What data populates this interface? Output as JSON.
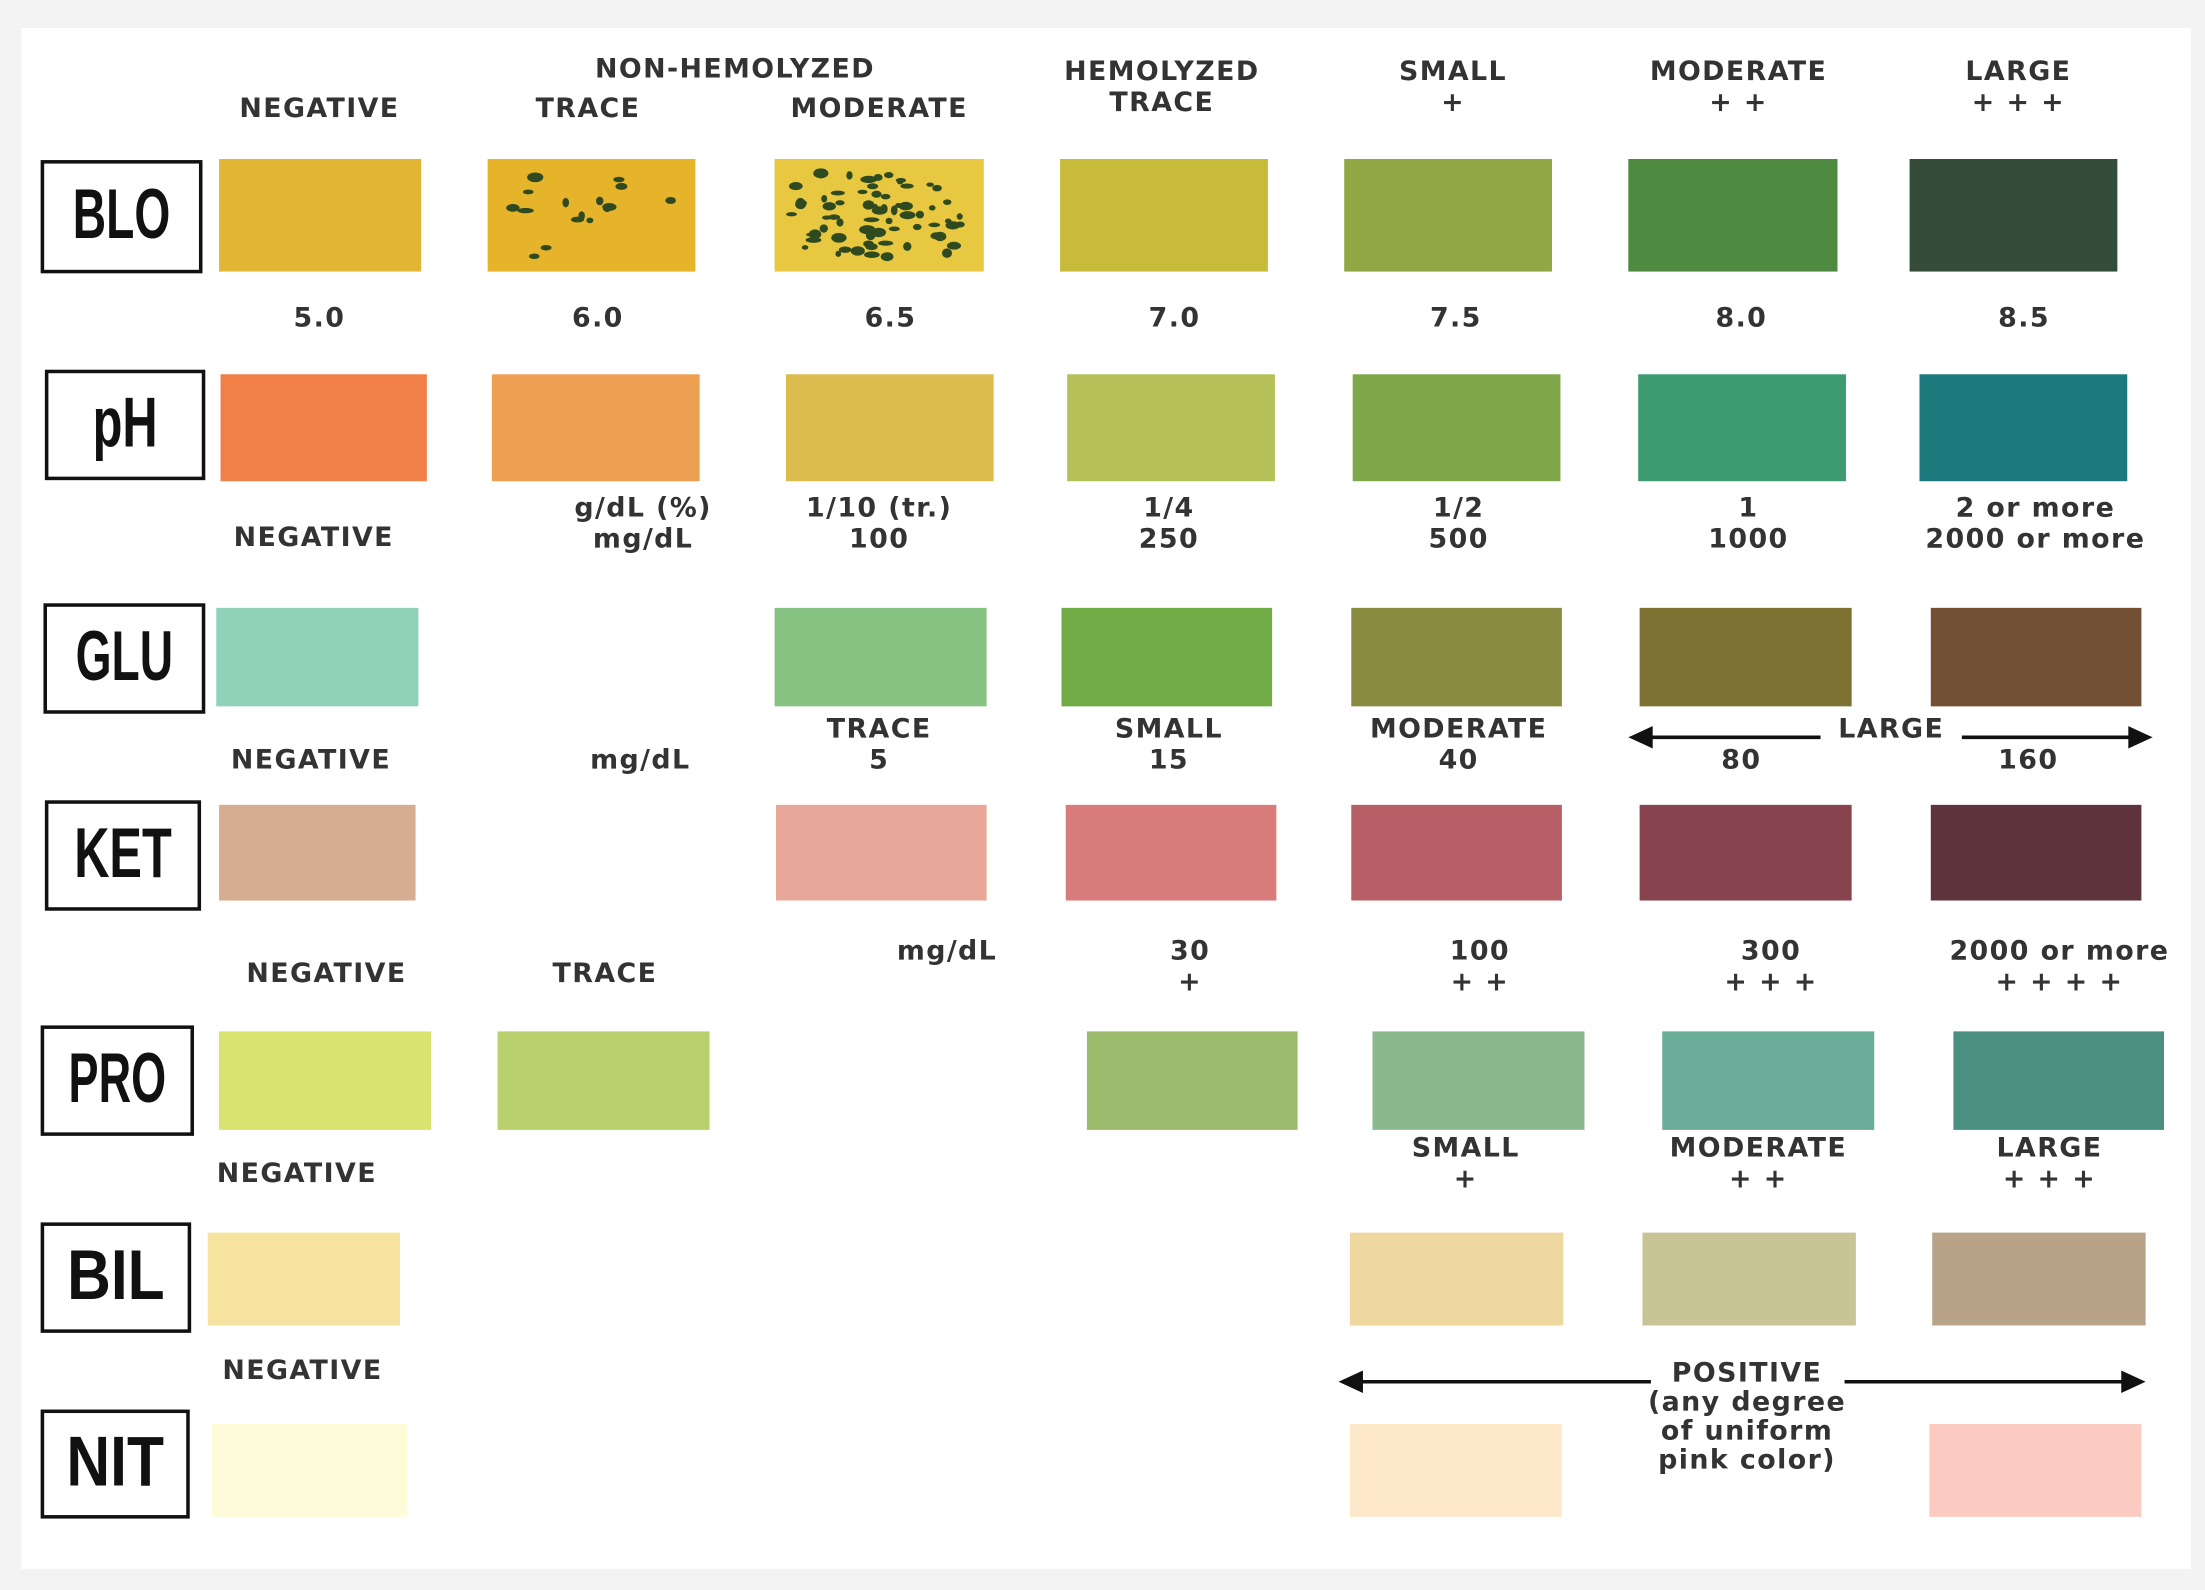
{
  "rows": [
    {
      "label": "BLO",
      "headers": [
        [
          "NEGATIVE"
        ],
        [
          "NON-HEMOLYZED"
        ],
        [
          "TRACE"
        ],
        [
          "MODERATE"
        ],
        [
          "HEMOLYZED",
          "TRACE"
        ],
        [
          "SMALL",
          "+"
        ],
        [
          "MODERATE",
          "+ +"
        ],
        [
          "LARGE",
          "+ + +"
        ]
      ],
      "swatches": [
        "#e3b534",
        "#e5b42b",
        "#e7c840",
        "#c8bb3a",
        "#8fa843",
        "#4e8a3f",
        "#334d38"
      ]
    },
    {
      "label": "pH",
      "headers": [
        [
          "5.0"
        ],
        [
          "6.0"
        ],
        [
          "6.5"
        ],
        [
          "7.0"
        ],
        [
          "7.5"
        ],
        [
          "8.0"
        ],
        [
          "8.5"
        ]
      ],
      "swatches": [
        "#f07f48",
        "#eda051",
        "#dbbd4e",
        "#b5c158",
        "#80a84b",
        "#3e9a6f",
        "#1c7a7c"
      ]
    },
    {
      "label": "GLU",
      "headers": [
        [
          "NEGATIVE"
        ],
        [
          "g/dL (%)",
          "mg/dL"
        ],
        [
          "1/10 (tr.)",
          "100"
        ],
        [
          "1/4",
          "250"
        ],
        [
          "1/2",
          "500"
        ],
        [
          "1",
          "1000"
        ],
        [
          "2 or more",
          "2000 or more"
        ]
      ],
      "swatches": [
        "#8fd1b9",
        "#86c383",
        "#70ab45",
        "#8b8a41",
        "#7d7232",
        "#734f34"
      ]
    },
    {
      "label": "KET",
      "headers": [
        [
          "NEGATIVE"
        ],
        [
          "mg/dL"
        ],
        [
          "TRACE",
          "5"
        ],
        [
          "SMALL",
          "15"
        ],
        [
          "MODERATE",
          "40"
        ],
        [
          "LARGE"
        ],
        [
          "80"
        ],
        [
          "160"
        ]
      ],
      "swatches": [
        "#d5ad91",
        "#e8a899",
        "#d87b7b",
        "#b75f66",
        "#87444f",
        "#5e333c"
      ]
    },
    {
      "label": "PRO",
      "headers": [
        [
          "NEGATIVE"
        ],
        [
          "TRACE"
        ],
        [
          "mg/dL"
        ],
        [
          "30",
          "+"
        ],
        [
          "100",
          "+ +"
        ],
        [
          "300",
          "+ + +"
        ],
        [
          "2000 or more",
          "+ + + +"
        ]
      ],
      "swatches": [
        "#d9e370",
        "#b8d16c",
        "#9cba6b",
        "#8ab98e",
        "#6aad98",
        "#4a8f80"
      ]
    },
    {
      "label": "BIL",
      "headers": [
        [
          "NEGATIVE"
        ],
        [
          "SMALL",
          "+"
        ],
        [
          "MODERATE",
          "+ +"
        ],
        [
          "LARGE",
          "+ + +"
        ]
      ],
      "swatches": [
        "#f6e3a0",
        "#efd8a0",
        "#c9c496",
        "#b8a388"
      ]
    },
    {
      "label": "NIT",
      "headers": [
        [
          "NEGATIVE"
        ],
        [
          "POSITIVE",
          "(any degree",
          "of uniform",
          "pink color)"
        ]
      ],
      "swatches": [
        "#fefbd8",
        "#fde9c9",
        "#fbcac0"
      ]
    }
  ]
}
